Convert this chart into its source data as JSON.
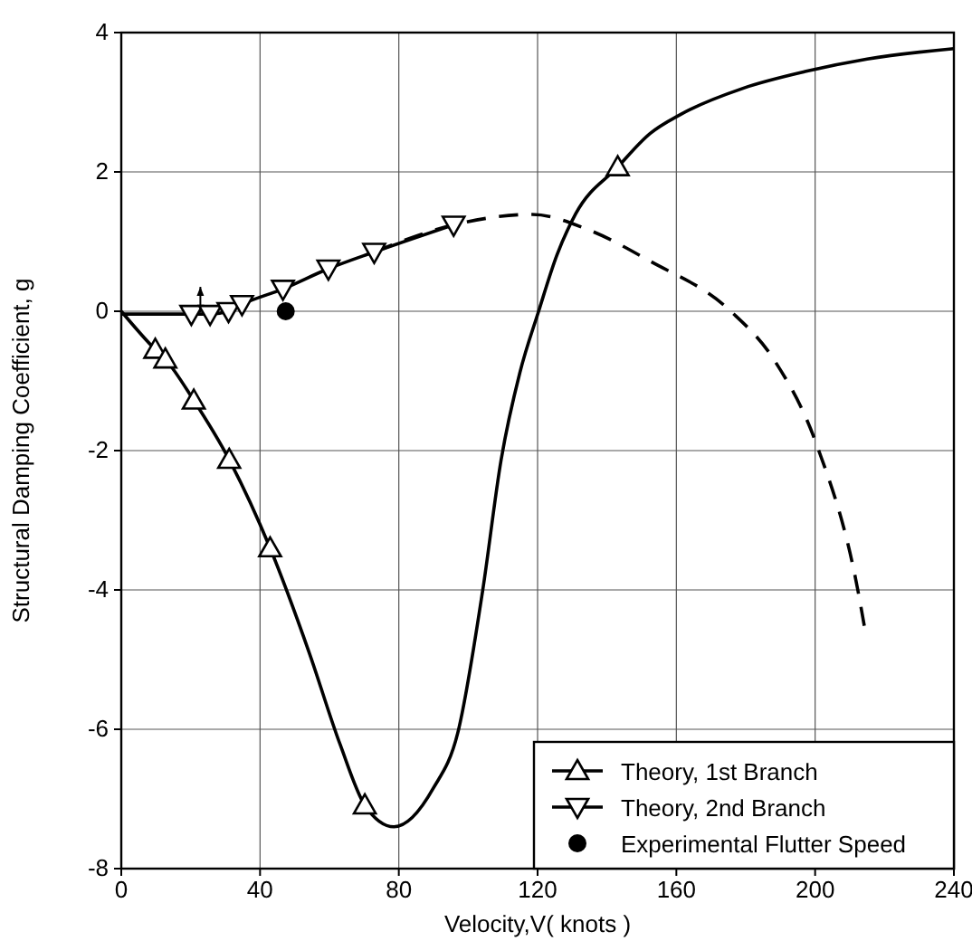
{
  "chart_data": {
    "type": "line",
    "xlabel": "Velocity,V( knots )",
    "ylabel": "Structural Damping Coefficient,  g",
    "xlim": [
      0,
      240
    ],
    "xticks": [
      0,
      40,
      80,
      120,
      160,
      200,
      240
    ],
    "ylim": [
      -8,
      4
    ],
    "yticks": [
      -8,
      -6,
      -4,
      -2,
      0,
      2,
      4
    ],
    "grid": true,
    "legend": "bottom right",
    "series": [
      {
        "color": "#000000",
        "marker": "none",
        "line_style": "solid",
        "x": [
          0,
          9.8,
          12.7,
          20.9,
          31.1,
          42.9,
          54.1,
          63.1,
          70.2,
          78.6,
          89.9,
          97,
          104.2,
          109.5,
          114.9,
          120.3,
          125.6,
          131,
          143.1,
          152.4,
          161.4,
          179.2,
          197.1,
          215,
          240
        ],
        "values": [
          0,
          -0.55,
          -0.69,
          -1.28,
          -2.13,
          -3.4,
          -4.89,
          -6.22,
          -7.09,
          -7.4,
          -6.85,
          -6.05,
          -4.0,
          -2.13,
          -0.88,
          0,
          0.81,
          1.4,
          2.07,
          2.55,
          2.83,
          3.2,
          3.44,
          3.62,
          3.77
        ]
      },
      {
        "name": "Theory,  1st Branch",
        "type": "scatter",
        "color": "#000000",
        "marker": "triangle",
        "x": [
          9.8,
          12.7,
          20.9,
          31.1,
          42.9,
          70.2,
          143.1
        ],
        "values": [
          -0.55,
          -0.69,
          -1.28,
          -2.13,
          -3.4,
          -7.09,
          2.07
        ]
      },
      {
        "color": "#000000",
        "marker": "none",
        "line_style": "solid",
        "x": [
          0,
          20.2,
          25.6,
          30.9,
          34.8,
          46.6,
          59.7,
          72.9,
          95.8
        ],
        "values": [
          -0.04,
          -0.04,
          -0.04,
          0,
          0.1,
          0.32,
          0.61,
          0.85,
          1.24
        ]
      },
      {
        "color": "#000000",
        "marker": "none",
        "line_style": "dashed",
        "x": [
          72.9,
          95.8,
          118.5,
          134.6,
          152.4,
          175.7,
          188.2,
          200.7,
          212.3,
          214.4
        ],
        "values": [
          0.85,
          1.24,
          1.39,
          1.17,
          0.72,
          0,
          -0.7,
          -1.95,
          -4.0,
          -4.58
        ]
      },
      {
        "name": "Theory, 2nd Branch",
        "type": "scatter",
        "color": "#000000",
        "marker": "triangle-down",
        "x": [
          20.2,
          25.6,
          30.9,
          34.8,
          46.6,
          59.7,
          72.9,
          95.8
        ],
        "values": [
          -0.04,
          -0.04,
          0,
          0.1,
          0.32,
          0.61,
          0.85,
          1.24
        ]
      },
      {
        "name": "Experimental Flutter Speed",
        "type": "scatter",
        "color": "#000000",
        "marker": "circle",
        "x": [
          47.4
        ],
        "values": [
          0
        ]
      }
    ]
  }
}
